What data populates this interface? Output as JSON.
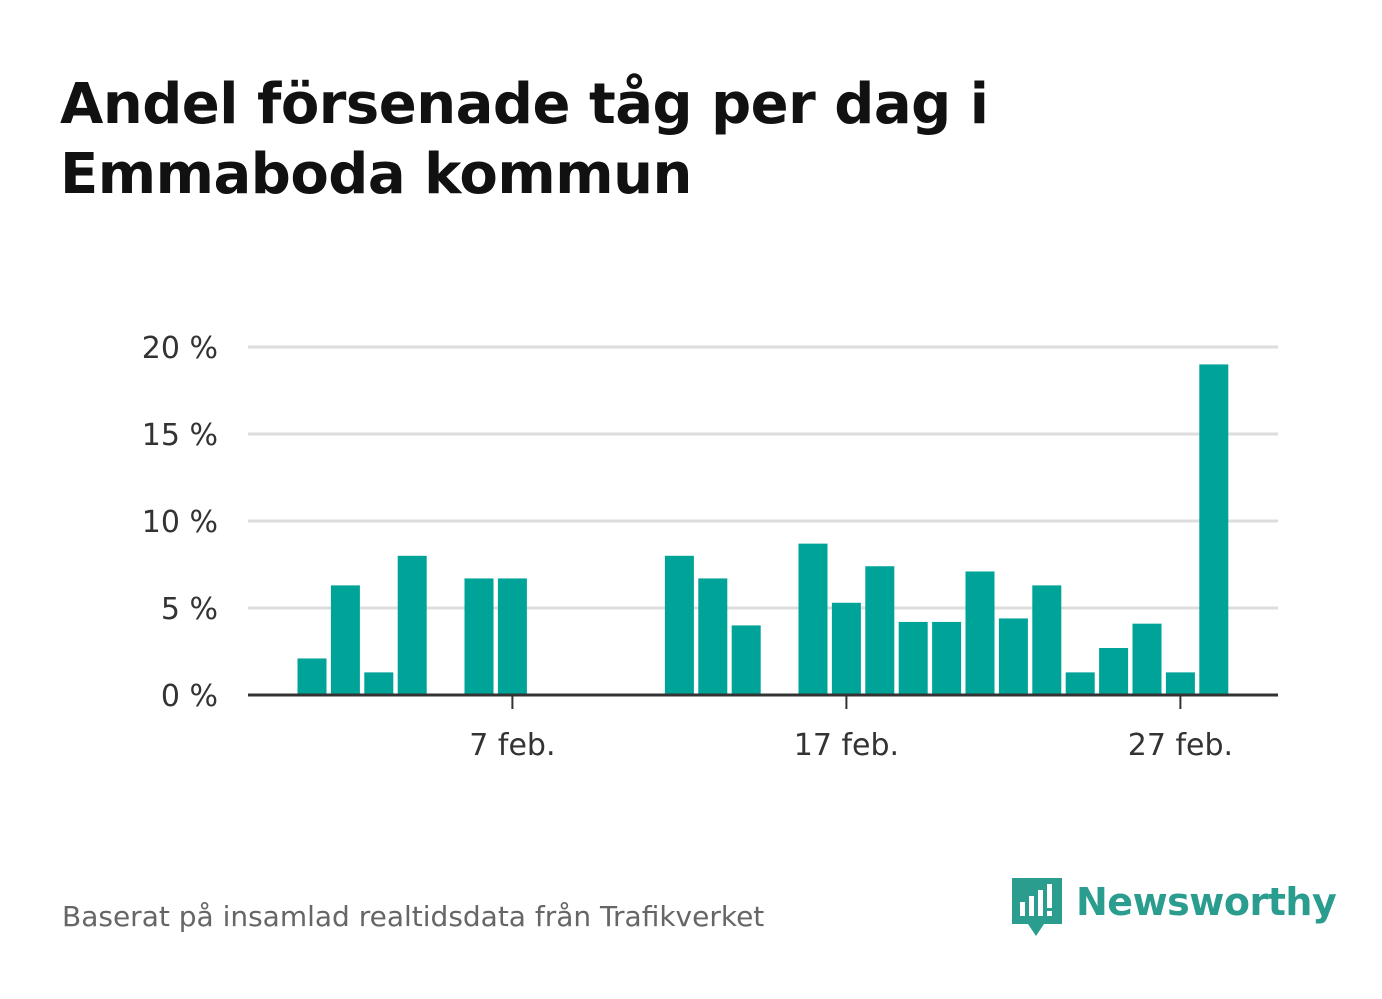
{
  "title": "Andel försenade tåg per dag i Emmaboda kommun",
  "footer": {
    "source": "Baserat på insamlad realtidsdata från Trafikverket",
    "brand": "Newsworthy",
    "brand_icon": "newsworthy-logo-icon",
    "brand_color": "#2a9d8f"
  },
  "colors": {
    "bar": "#00a398",
    "grid": "#dddddd",
    "axis": "#333333"
  },
  "chart_data": {
    "type": "bar",
    "title": "Andel försenade tåg per dag i Emmaboda kommun",
    "xlabel": "",
    "ylabel": "",
    "x": [
      "2022-02-01",
      "2022-02-02",
      "2022-02-03",
      "2022-02-04",
      "2022-02-05",
      "2022-02-06",
      "2022-02-07",
      "2022-02-08",
      "2022-02-09",
      "2022-02-10",
      "2022-02-11",
      "2022-02-12",
      "2022-02-13",
      "2022-02-14",
      "2022-02-15",
      "2022-02-16",
      "2022-02-17",
      "2022-02-18",
      "2022-02-19",
      "2022-02-20",
      "2022-02-21",
      "2022-02-22",
      "2022-02-23",
      "2022-02-24",
      "2022-02-25",
      "2022-02-26",
      "2022-02-27",
      "2022-02-28"
    ],
    "values": [
      2.1,
      6.3,
      1.3,
      8.0,
      0,
      6.7,
      6.7,
      0,
      0,
      0,
      0,
      8.0,
      6.7,
      4.0,
      0,
      8.7,
      5.3,
      7.4,
      4.2,
      4.2,
      7.1,
      4.4,
      6.3,
      1.3,
      2.7,
      4.1,
      1.3,
      19.0
    ],
    "ylim": [
      0,
      20
    ],
    "yticks": [
      0,
      5,
      10,
      15,
      20
    ],
    "ytick_labels": [
      "0 %",
      "5 %",
      "10 %",
      "15 %",
      "20 %"
    ],
    "xticks": [
      {
        "date": "2022-02-07",
        "label": "7 feb."
      },
      {
        "date": "2022-02-17",
        "label": "17 feb."
      },
      {
        "date": "2022-02-27",
        "label": "27 feb."
      }
    ],
    "grid": true,
    "legend": "none"
  }
}
